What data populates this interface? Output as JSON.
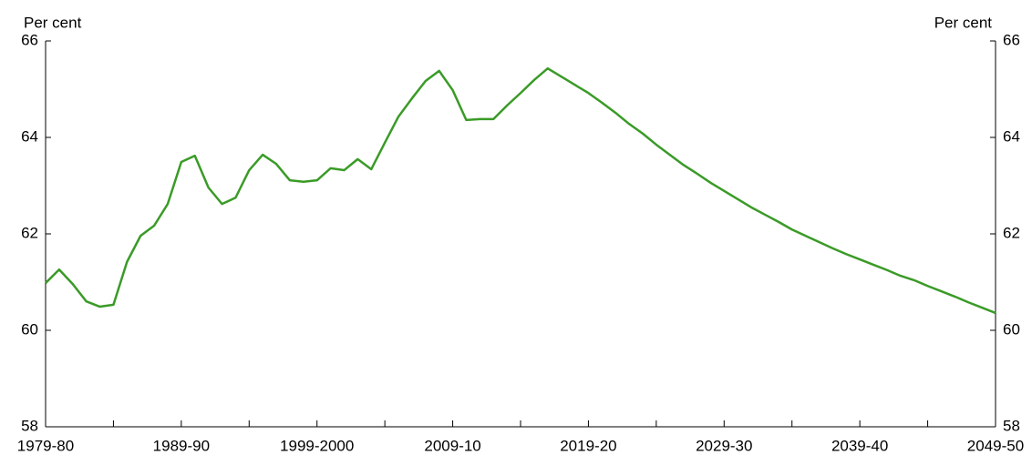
{
  "chart_data": {
    "type": "line",
    "y_label": "Per cent",
    "y2_label": "Per cent",
    "categories": [
      "1979-80",
      null,
      null,
      null,
      null,
      null,
      null,
      null,
      null,
      null,
      "1989-90",
      null,
      null,
      null,
      null,
      null,
      null,
      null,
      null,
      null,
      "1999-2000",
      null,
      null,
      null,
      null,
      null,
      null,
      null,
      null,
      null,
      "2009-10",
      null,
      null,
      null,
      null,
      null,
      null,
      null,
      null,
      null,
      "2019-20",
      null,
      null,
      null,
      null,
      null,
      null,
      null,
      null,
      null,
      "2029-30",
      null,
      null,
      null,
      null,
      null,
      null,
      null,
      null,
      null,
      "2039-40",
      null,
      null,
      null,
      null,
      null,
      null,
      null,
      null,
      null,
      "2049-50"
    ],
    "series": [
      {
        "color": "#3a9b27",
        "values": [
          60.98,
          61.26,
          60.96,
          60.6,
          60.49,
          60.53,
          61.42,
          61.96,
          62.17,
          62.62,
          63.49,
          63.62,
          62.96,
          62.62,
          62.75,
          63.32,
          63.64,
          63.45,
          63.11,
          63.08,
          63.11,
          63.36,
          63.32,
          63.55,
          63.34,
          63.89,
          64.43,
          64.81,
          65.17,
          65.38,
          64.98,
          64.36,
          64.38,
          64.38,
          64.66,
          64.92,
          65.19,
          65.43,
          65.26,
          65.09,
          64.92,
          64.72,
          64.51,
          64.28,
          64.08,
          63.85,
          63.64,
          63.43,
          63.25,
          63.06,
          62.89,
          62.72,
          62.55,
          62.4,
          62.25,
          62.09,
          61.96,
          61.83,
          61.7,
          61.58,
          61.47,
          61.36,
          61.25,
          61.13,
          61.04,
          60.92,
          60.81,
          60.7,
          60.58,
          60.47,
          60.36
        ]
      }
    ],
    "ylim": [
      58,
      66
    ],
    "yticks": [
      58,
      60,
      62,
      64,
      66
    ],
    "y2lim": [
      58,
      66
    ],
    "y2ticks": [
      58,
      60,
      62,
      64,
      66
    ]
  }
}
